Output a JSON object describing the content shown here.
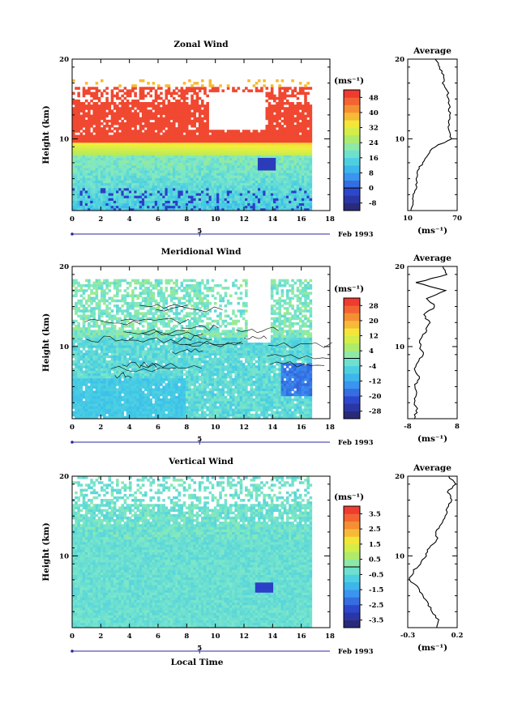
{
  "chart_data": [
    {
      "type": "heatmap",
      "title": "Zonal Wind",
      "ylabel": "Height (km)",
      "xlim": [
        0,
        18
      ],
      "ylim": [
        1,
        20
      ],
      "x_ticks": [
        0,
        2,
        4,
        6,
        8,
        10,
        12,
        14,
        16,
        18
      ],
      "y_ticks": [
        10,
        20
      ],
      "date_marker": "5",
      "date_label": "Feb 1993",
      "colorbar": {
        "unit": "(ms⁻¹)",
        "ticks": [
          "48",
          "40",
          "32",
          "24",
          "16",
          "8",
          "0",
          "-8"
        ],
        "range": [
          -12,
          52
        ]
      },
      "profile": {
        "title": "Average",
        "xlim": [
          -10,
          70
        ],
        "x_ticks": [
          "10",
          "70"
        ],
        "xlabel": "(ms⁻¹)",
        "y_ticks": [
          10,
          20
        ],
        "heights": [
          1,
          2,
          3,
          4,
          5,
          6,
          7,
          8,
          9,
          10,
          11,
          12,
          13,
          14,
          15,
          16,
          17,
          18,
          19,
          20
        ],
        "values": [
          -5,
          -2,
          0,
          3,
          4,
          6,
          14,
          22,
          34,
          60,
          58,
          56,
          57,
          58,
          55,
          54,
          47,
          48,
          40,
          36
        ]
      }
    },
    {
      "type": "heatmap",
      "title": "Meridional Wind",
      "ylabel": "Height (km)",
      "xlim": [
        0,
        18
      ],
      "ylim": [
        1,
        20
      ],
      "x_ticks": [
        0,
        2,
        4,
        6,
        8,
        10,
        12,
        14,
        16,
        18
      ],
      "y_ticks": [
        10,
        20
      ],
      "date_marker": "5",
      "date_label": "Feb 1993",
      "colorbar": {
        "unit": "(ms⁻¹)",
        "ticks": [
          "28",
          "20",
          "12",
          "4",
          "-4",
          "-12",
          "-20",
          "-28"
        ],
        "range": [
          -32,
          32
        ]
      },
      "profile": {
        "title": "Average",
        "xlim": [
          -8,
          8
        ],
        "x_ticks": [
          "-8",
          "8"
        ],
        "xlabel": "(ms⁻¹)",
        "y_ticks": [
          10,
          20
        ],
        "heights": [
          1,
          2,
          3,
          4,
          5,
          6,
          7,
          8,
          9,
          10,
          11,
          12,
          13,
          14,
          15,
          16,
          17,
          18,
          19,
          20
        ],
        "values": [
          -6,
          -5,
          -6,
          -5,
          -6,
          -4,
          -6,
          -5,
          -3,
          -4,
          -4,
          -2,
          -1,
          -3,
          1,
          -2,
          4,
          -5,
          5,
          3
        ]
      }
    },
    {
      "type": "heatmap",
      "title": "Vertical Wind",
      "xlabel": "Local Time",
      "ylabel": "Height (km)",
      "xlim": [
        0,
        18
      ],
      "ylim": [
        1,
        20
      ],
      "x_ticks": [
        0,
        2,
        4,
        6,
        8,
        10,
        12,
        14,
        16,
        18
      ],
      "y_ticks": [
        10,
        20
      ],
      "date_marker": "5",
      "date_label": "Feb 1993",
      "colorbar": {
        "unit": "(ms⁻¹)",
        "ticks": [
          "3.5",
          "2.5",
          "1.5",
          "0.5",
          "-0.5",
          "-1.5",
          "-2.5",
          "-3.5"
        ],
        "range": [
          -4,
          4
        ]
      },
      "profile": {
        "title": "Average",
        "xlim": [
          -0.3,
          0.2
        ],
        "x_ticks": [
          "-0.3",
          "0.2"
        ],
        "xlabel": "(ms⁻¹)",
        "y_ticks": [
          10,
          20
        ],
        "heights": [
          1,
          2,
          3,
          4,
          5,
          6,
          7,
          8,
          9,
          10,
          11,
          12,
          13,
          14,
          15,
          16,
          17,
          18,
          19,
          20
        ],
        "values": [
          0.0,
          0.01,
          -0.05,
          -0.1,
          -0.15,
          -0.2,
          -0.28,
          -0.25,
          -0.18,
          -0.12,
          -0.08,
          0.0,
          -0.02,
          0.05,
          0.08,
          0.1,
          0.15,
          0.1,
          0.18,
          0.12
        ]
      }
    }
  ]
}
